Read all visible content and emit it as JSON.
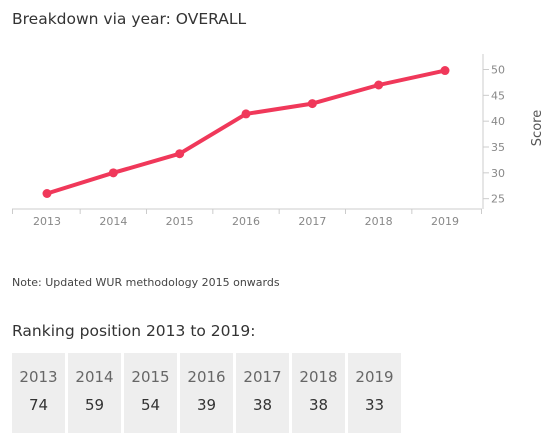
{
  "chart_data": {
    "type": "line",
    "title": "Breakdown via year: OVERALL",
    "x": [
      2013,
      2014,
      2015,
      2016,
      2017,
      2018,
      2019
    ],
    "series": [
      {
        "values": [
          26.0,
          30.0,
          33.7,
          41.4,
          43.4,
          47.0,
          49.8
        ]
      }
    ],
    "xlabel": "",
    "ylabel": "Score",
    "ylim": [
      23,
      53
    ],
    "yticks": [
      25,
      30,
      35,
      40,
      45,
      50
    ],
    "y_axis_position": "right",
    "grid": false,
    "line_color": "#f0385a"
  },
  "note": "Note: Updated WUR methodology 2015 onwards",
  "ranking": {
    "title": "Ranking position 2013 to 2019:",
    "items": [
      {
        "year": "2013",
        "position": "74"
      },
      {
        "year": "2014",
        "position": "59"
      },
      {
        "year": "2015",
        "position": "54"
      },
      {
        "year": "2016",
        "position": "39"
      },
      {
        "year": "2017",
        "position": "38"
      },
      {
        "year": "2018",
        "position": "38"
      },
      {
        "year": "2019",
        "position": "33"
      }
    ]
  }
}
